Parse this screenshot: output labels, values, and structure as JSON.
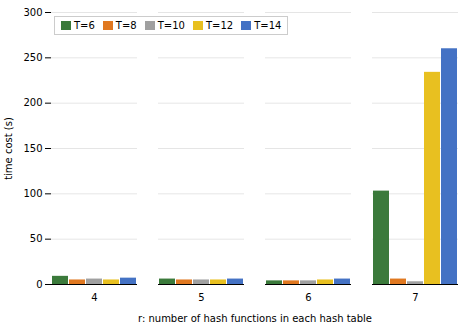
{
  "chart_data": {
    "type": "bar",
    "categories": [
      "4",
      "5",
      "6",
      "7"
    ],
    "series": [
      {
        "name": "T=6",
        "color": "#3B7A3B",
        "values": [
          9,
          6,
          4,
          103
        ]
      },
      {
        "name": "T=8",
        "color": "#E07820",
        "values": [
          5,
          5,
          4,
          6
        ]
      },
      {
        "name": "T=10",
        "color": "#A0A0A0",
        "values": [
          6,
          5,
          4,
          3
        ]
      },
      {
        "name": "T=12",
        "color": "#E8C020",
        "values": [
          5,
          5,
          5,
          234
        ]
      },
      {
        "name": "T=14",
        "color": "#4472C4",
        "values": [
          7,
          6,
          6,
          260
        ]
      }
    ],
    "xlabel": "r: number of hash functions in each hash table",
    "ylabel": "time cost (s)",
    "ylim": [
      0,
      300
    ],
    "yticks": [
      0,
      50,
      100,
      150,
      200,
      250,
      300
    ],
    "grid": true,
    "legend": "upper left"
  }
}
